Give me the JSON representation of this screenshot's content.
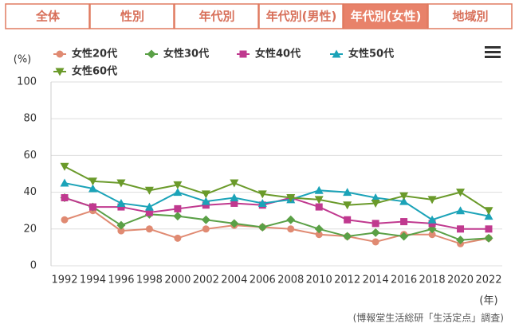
{
  "tabs": [
    "全体",
    "性別",
    "年代別",
    "年代別(男性)",
    "年代別(女性)",
    "地域別"
  ],
  "active_tab": 4,
  "chart_data": {
    "type": "line",
    "y_label": "(%)",
    "x_label": "(年)",
    "source": "(博報堂生活総研「生活定点」調査)",
    "categories": [
      "1992",
      "1994",
      "1996",
      "1998",
      "2000",
      "2002",
      "2004",
      "2006",
      "2008",
      "2010",
      "2012",
      "2014",
      "2016",
      "2018",
      "2020",
      "2022"
    ],
    "series": [
      {
        "name": "女性20代",
        "color": "#e08a72",
        "marker": "circle",
        "values": [
          25,
          30,
          19,
          20,
          15,
          20,
          22,
          21,
          20,
          17,
          16,
          13,
          17,
          17,
          12,
          15
        ]
      },
      {
        "name": "女性30代",
        "color": "#5aa046",
        "marker": "diamond",
        "values": [
          37,
          32,
          22,
          28,
          27,
          25,
          23,
          21,
          25,
          20,
          16,
          18,
          16,
          20,
          14,
          15
        ]
      },
      {
        "name": "女性40代",
        "color": "#c0398f",
        "marker": "square",
        "values": [
          37,
          32,
          32,
          29,
          31,
          33,
          34,
          33,
          37,
          32,
          25,
          23,
          24,
          23,
          20,
          20
        ]
      },
      {
        "name": "女性50代",
        "color": "#1ba3b8",
        "marker": "triangle-up",
        "values": [
          45,
          42,
          34,
          32,
          40,
          35,
          37,
          34,
          36,
          41,
          40,
          37,
          35,
          25,
          30,
          27
        ]
      },
      {
        "name": "女性60代",
        "color": "#6a9a2a",
        "marker": "triangle-down",
        "values": [
          54,
          46,
          45,
          41,
          44,
          39,
          45,
          39,
          37,
          36,
          33,
          34,
          38,
          36,
          40,
          30
        ]
      }
    ],
    "ylim": [
      0,
      100
    ],
    "yticks": [
      0,
      20,
      40,
      60,
      80,
      100
    ],
    "grid": true,
    "legend": "top-left"
  }
}
